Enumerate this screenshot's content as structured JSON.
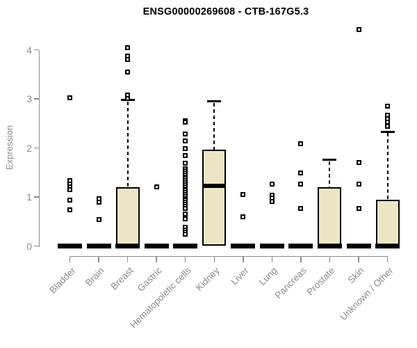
{
  "chart_data": {
    "type": "boxplot",
    "title": "ENSG00000269608 - CTB-167G5.3",
    "ylabel": "Expression",
    "ylim": [
      0,
      4
    ],
    "y_ticks": [
      0,
      1,
      2,
      3,
      4
    ],
    "grid": "off",
    "categories": [
      "Bladder",
      "Brain",
      "Breast",
      "Gastric",
      "Hematopoietic cells",
      "Kidney",
      "Liver",
      "Lung",
      "Pancreas",
      "Prostate",
      "Skin",
      "Unknown / Other"
    ],
    "series": [
      {
        "category": "Bladder",
        "q1": 0,
        "median": 0,
        "q3": 0,
        "whisker_low": 0,
        "whisker_high": 0,
        "outliers": [
          3.03,
          1.33,
          1.27,
          1.21,
          1.15,
          0.93,
          0.74
        ]
      },
      {
        "category": "Brain",
        "q1": 0,
        "median": 0,
        "q3": 0,
        "whisker_low": 0,
        "whisker_high": 0,
        "outliers": [
          0.97,
          0.89,
          0.54
        ]
      },
      {
        "category": "Breast",
        "q1": 0,
        "median": 0,
        "q3": 1.2,
        "whisker_low": 0,
        "whisker_high": 2.98,
        "outliers": [
          4.05,
          3.88,
          3.81,
          3.55,
          3.08,
          3.01
        ]
      },
      {
        "category": "Gastric",
        "q1": 0,
        "median": 0,
        "q3": 0,
        "whisker_low": 0,
        "whisker_high": 0,
        "outliers": [
          1.21
        ]
      },
      {
        "category": "Hematopoietic cells",
        "q1": 0,
        "median": 0,
        "q3": 0,
        "whisker_low": 0,
        "whisker_high": 0,
        "outliers": [
          2.56,
          2.52,
          2.28,
          2.14,
          1.99,
          1.85,
          1.69,
          1.57,
          1.53,
          1.49,
          1.45,
          1.41,
          1.37,
          1.33,
          1.29,
          1.25,
          1.21,
          1.17,
          1.13,
          1.09,
          1.05,
          1.01,
          0.97,
          0.93,
          0.89,
          0.85,
          0.81,
          0.77,
          0.66,
          0.55,
          0.39,
          0.33,
          0.28,
          0.24
        ]
      },
      {
        "category": "Kidney",
        "q1": 0,
        "median": 1.23,
        "q3": 1.97,
        "whisker_low": 0,
        "whisker_high": 2.95,
        "outliers": []
      },
      {
        "category": "Liver",
        "q1": 0,
        "median": 0,
        "q3": 0,
        "whisker_low": 0,
        "whisker_high": 0,
        "outliers": [
          1.05,
          0.59
        ]
      },
      {
        "category": "Lung",
        "q1": 0,
        "median": 0,
        "q3": 0,
        "whisker_low": 0,
        "whisker_high": 0,
        "outliers": [
          1.26,
          1.04,
          0.98,
          0.91
        ]
      },
      {
        "category": "Pancreas",
        "q1": 0,
        "median": 0,
        "q3": 0,
        "whisker_low": 0,
        "whisker_high": 0,
        "outliers": [
          2.08,
          1.49,
          1.26,
          0.76
        ]
      },
      {
        "category": "Prostate",
        "q1": 0,
        "median": 0,
        "q3": 1.2,
        "whisker_low": 0,
        "whisker_high": 1.76,
        "outliers": []
      },
      {
        "category": "Skin",
        "q1": 0,
        "median": 0,
        "q3": 0,
        "whisker_low": 0,
        "whisker_high": 0,
        "outliers": [
          4.42,
          1.7,
          1.27,
          0.77
        ]
      },
      {
        "category": "Unknown / Other",
        "q1": 0,
        "median": 0,
        "q3": 0.95,
        "whisker_low": 0,
        "whisker_high": 2.33,
        "outliers": [
          2.85,
          2.67,
          2.6,
          2.52,
          2.44
        ]
      }
    ],
    "colors": {
      "box_fill": "#EDE6C6",
      "box_border": "#000000",
      "axis": "#8c8c8c",
      "label_text": "#8c8c8c",
      "title_text": "#000000",
      "background": "#ffffff"
    }
  }
}
